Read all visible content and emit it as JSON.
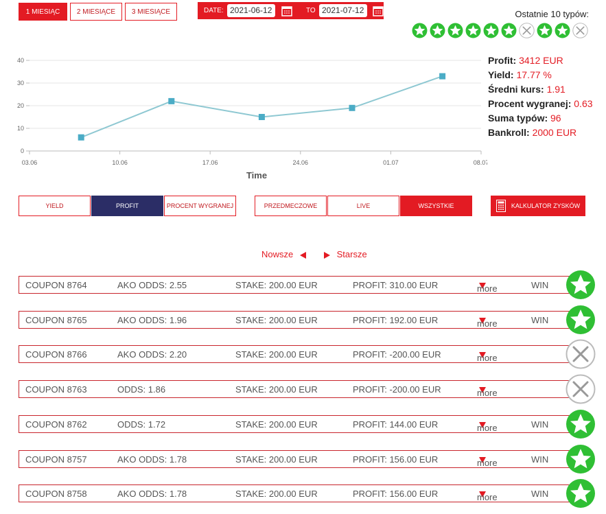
{
  "period_buttons": [
    {
      "label": "1 MIESIĄC",
      "active": true
    },
    {
      "label": "2 MIESIĄCE"
    },
    {
      "label": "3 MIESIĄCE"
    }
  ],
  "date_filter": {
    "from_label": "DATE:",
    "from": "2021-06-12",
    "to_label": "TO",
    "to": "2021-07-12"
  },
  "last_tips_title": "Ostatnie 10 typów:",
  "chart_data": {
    "type": "line",
    "x_label": "Time",
    "x": [
      "07.06",
      "14.06",
      "21.06",
      "28.06",
      "05.07"
    ],
    "series": [
      {
        "color": "#8ec8d2",
        "marker_color": "#4bacc6",
        "values": [
          6,
          22,
          15,
          19,
          33
        ]
      }
    ],
    "xlim": [
      "03.06",
      "08.07"
    ],
    "xticks": [
      "03.06",
      "10.06",
      "17.06",
      "24.06",
      "01.07",
      "08.07"
    ],
    "ylim": [
      0,
      40
    ],
    "yticks": [
      0,
      10,
      20,
      30,
      40
    ],
    "grid": true
  },
  "stats": [
    {
      "label": "Profit:",
      "value": "3412 EUR"
    },
    {
      "label": "Yield:",
      "value": "17.77 %"
    },
    {
      "label": "Średni kurs:",
      "value": "1.91"
    },
    {
      "label": "Procent wygranej:",
      "value": "0.63"
    },
    {
      "label": "Suma typów:",
      "value": "96"
    },
    {
      "label": "Bankroll:",
      "value": "2000 EUR"
    }
  ],
  "metric_tabs": [
    {
      "label": "YIELD"
    },
    {
      "label": "PROFIT",
      "active": true
    },
    {
      "label": "PROCENT WYGRANEJ"
    }
  ],
  "type_tabs": [
    {
      "label": "PRZEDMECZOWE"
    },
    {
      "label": "LIVE"
    },
    {
      "label": "WSZYSTKIE",
      "active": true
    }
  ],
  "calculator": "KALKULATOR ZYSKÓW",
  "pager": {
    "newer": "Nowsze",
    "older": "Starsze"
  },
  "coupons": [
    {
      "coupon": "COUPON 8764",
      "odds": "AKO ODDS: 2.55",
      "stake": "STAKE: 200.00 EUR",
      "profit": "PROFIT: 310.00 EUR",
      "more": "more",
      "status": "WIN"
    },
    {
      "coupon": "COUPON 8765",
      "odds": "AKO ODDS: 1.96",
      "stake": "STAKE: 200.00 EUR",
      "profit": "PROFIT: 192.00 EUR",
      "more": "more",
      "status": "WIN"
    },
    {
      "coupon": "COUPON 8766",
      "odds": "AKO ODDS: 2.20",
      "stake": "STAKE: 200.00 EUR",
      "profit": "PROFIT: -200.00 EUR",
      "more": "more"
    },
    {
      "coupon": "COUPON 8763",
      "odds": "ODDS: 1.86",
      "stake": "STAKE: 200.00 EUR",
      "profit": "PROFIT: -200.00 EUR",
      "more": "more"
    },
    {
      "coupon": "COUPON 8762",
      "odds": "ODDS: 1.72",
      "stake": "STAKE: 200.00 EUR",
      "profit": "PROFIT: 144.00 EUR",
      "more": "more",
      "status": "WIN"
    },
    {
      "coupon": "COUPON 8757",
      "odds": "AKO ODDS: 1.78",
      "stake": "STAKE: 200.00 EUR",
      "profit": "PROFIT: 156.00 EUR",
      "more": "more",
      "status": "WIN"
    },
    {
      "coupon": "COUPON 8758",
      "odds": "AKO ODDS: 1.78",
      "stake": "STAKE: 200.00 EUR",
      "profit": "PROFIT: 156.00 EUR",
      "more": "more",
      "status": "WIN"
    }
  ]
}
